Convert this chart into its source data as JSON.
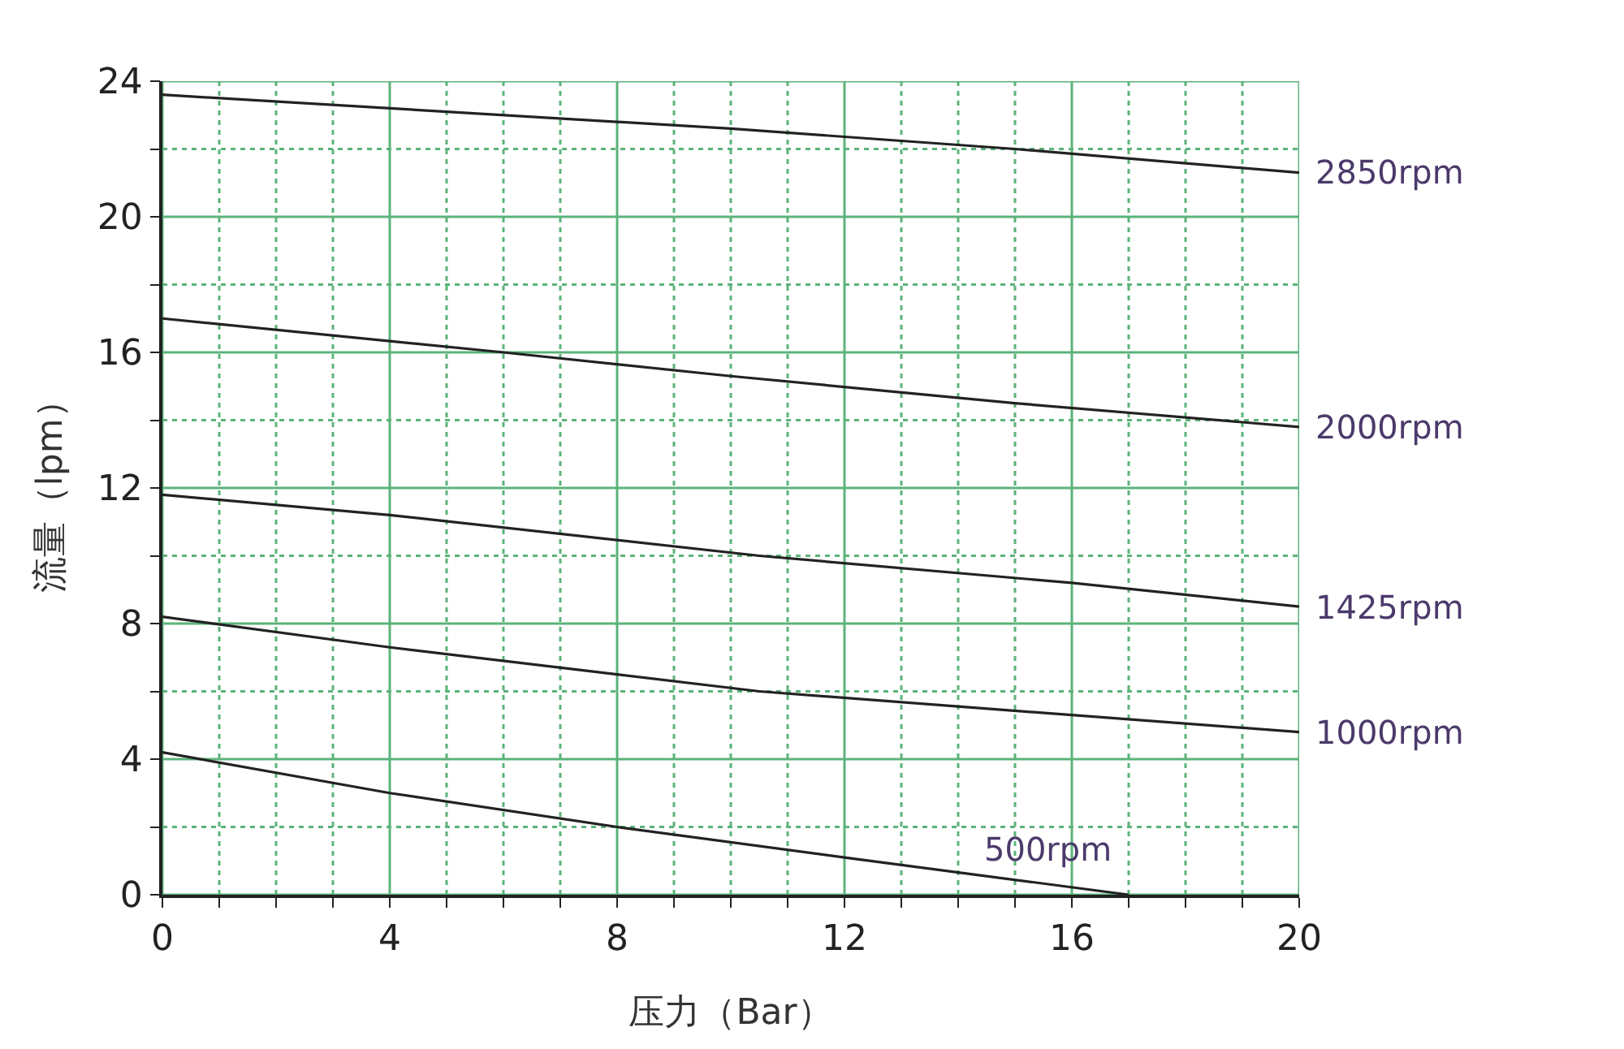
{
  "chart_data": {
    "type": "line",
    "xlabel": "压力（Bar）",
    "ylabel": "流量（lpm）",
    "xlim": [
      0,
      20
    ],
    "xticks": [
      0,
      {
        "value": 1,
        "label": null
      },
      {
        "value": 2,
        "label": null
      },
      {
        "value": 3,
        "label": null
      },
      4,
      {
        "value": 5,
        "label": null
      },
      {
        "value": 6,
        "label": null
      },
      {
        "value": 7,
        "label": null
      },
      8,
      {
        "value": 9,
        "label": null
      },
      {
        "value": 10,
        "label": null
      },
      {
        "value": 11,
        "label": null
      },
      12,
      {
        "value": 13,
        "label": null
      },
      {
        "value": 14,
        "label": null
      },
      {
        "value": 15,
        "label": null
      },
      16,
      {
        "value": 17,
        "label": null
      },
      {
        "value": 18,
        "label": null
      },
      {
        "value": 19,
        "label": null
      },
      20
    ],
    "ylim": [
      0,
      24
    ],
    "yticks": [
      0,
      {
        "value": 2,
        "label": null
      },
      4,
      {
        "value": 6,
        "label": null
      },
      8,
      {
        "value": 10,
        "label": null
      },
      12,
      {
        "value": 14,
        "label": null
      },
      16,
      {
        "value": 18,
        "label": null
      },
      20,
      {
        "value": 22,
        "label": null
      },
      24
    ],
    "grid": true,
    "legend": false,
    "marker": "none",
    "line_style": "solid",
    "series": [
      {
        "name": "2850rpm",
        "color": "#222222",
        "x": [
          0,
          5,
          10,
          15,
          20
        ],
        "values": [
          23.6,
          23.1,
          22.6,
          22.0,
          21.3
        ]
      },
      {
        "name": "2000rpm",
        "color": "#222222",
        "x": [
          0,
          6,
          10,
          15,
          20
        ],
        "values": [
          17.0,
          16.0,
          15.3,
          14.5,
          13.8
        ]
      },
      {
        "name": "1425rpm",
        "color": "#222222",
        "x": [
          0,
          4,
          10.5,
          16,
          20
        ],
        "values": [
          11.8,
          11.2,
          10.0,
          9.2,
          8.5
        ]
      },
      {
        "name": "1000rpm",
        "color": "#222222",
        "x": [
          0,
          4,
          8,
          10.5,
          16,
          20
        ],
        "values": [
          8.2,
          7.3,
          6.5,
          6.0,
          5.3,
          4.8
        ]
      },
      {
        "name": "500rpm",
        "color": "#222222",
        "x": [
          0,
          4,
          8,
          12,
          17
        ],
        "values": [
          4.2,
          3.0,
          2.0,
          1.1,
          0
        ]
      }
    ]
  }
}
